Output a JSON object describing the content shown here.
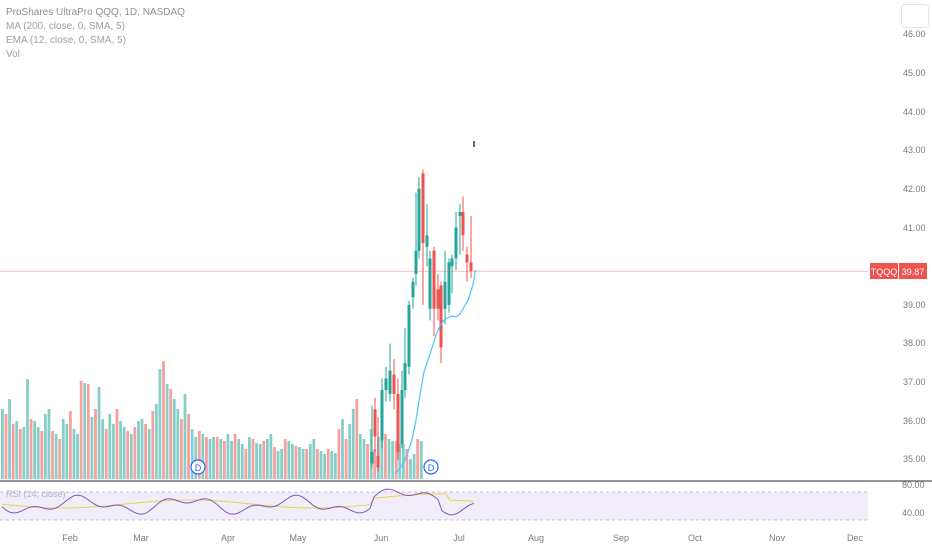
{
  "legend": {
    "title": "ProShares UltraPro QQQ, 1D, NASDAQ",
    "ma": "MA (200, close, 0, SMA, 5)",
    "ema": "EMA (12, close, 0, SMA, 5)",
    "vol": "Vol"
  },
  "price_axis": {
    "ticks": [
      "46.00",
      "45.00",
      "44.00",
      "43.00",
      "42.00",
      "41.00",
      "39.00",
      "38.00",
      "37.00",
      "36.00",
      "35.00"
    ]
  },
  "current_price": {
    "symbol": "TQQQ",
    "value": "39.87"
  },
  "dividend_marker": "D",
  "rsi": {
    "label": "RSI (14, close)",
    "ticks": [
      "80.00",
      "40.00"
    ]
  },
  "time_axis": {
    "months": [
      "Feb",
      "Mar",
      "Apr",
      "May",
      "Jun",
      "Jul",
      "Aug",
      "Sep",
      "Oct",
      "Nov",
      "Dec"
    ]
  },
  "colors": {
    "up": "#26a69a",
    "down": "#ef5350",
    "ema": "#4fc3f7",
    "rsi_line": "#7e57c2",
    "rsi_ma": "#e8d44d",
    "rsi_band": "#ede7f6"
  },
  "chart_data": {
    "type": "candlestick",
    "ylim": [
      34.6,
      46.5
    ],
    "candles": [
      {
        "x": 372,
        "o": 34.9,
        "c": 35.2,
        "h": 36.4,
        "l": 34.8
      },
      {
        "x": 375,
        "o": 36.3,
        "c": 35.6,
        "h": 36.6,
        "l": 35.2
      },
      {
        "x": 378,
        "o": 35.1,
        "c": 34.8,
        "h": 36.1,
        "l": 34.7
      },
      {
        "x": 382,
        "o": 35.5,
        "c": 36.8,
        "h": 37.1,
        "l": 35.3
      },
      {
        "x": 386,
        "o": 36.8,
        "c": 37.1,
        "h": 37.4,
        "l": 36.5
      },
      {
        "x": 390,
        "o": 36.7,
        "c": 37.3,
        "h": 38.0,
        "l": 36.5
      },
      {
        "x": 394,
        "o": 37.2,
        "c": 36.7,
        "h": 37.6,
        "l": 36.3
      },
      {
        "x": 398,
        "o": 36.7,
        "c": 35.2,
        "h": 37.1,
        "l": 35.0
      },
      {
        "x": 402,
        "o": 35.4,
        "c": 36.8,
        "h": 37.3,
        "l": 35.3
      },
      {
        "x": 405,
        "o": 36.8,
        "c": 37.5,
        "h": 38.4,
        "l": 36.6
      },
      {
        "x": 409,
        "o": 37.4,
        "c": 39.0,
        "h": 39.1,
        "l": 37.2
      },
      {
        "x": 413,
        "o": 39.2,
        "c": 39.6,
        "h": 39.7,
        "l": 38.9
      },
      {
        "x": 416,
        "o": 39.8,
        "c": 40.4,
        "h": 41.9,
        "l": 39.5
      },
      {
        "x": 419,
        "o": 40.4,
        "c": 42.0,
        "h": 42.3,
        "l": 40.2
      },
      {
        "x": 423,
        "o": 42.4,
        "c": 40.6,
        "h": 42.5,
        "l": 39.0
      },
      {
        "x": 427,
        "o": 40.5,
        "c": 40.8,
        "h": 41.6,
        "l": 40.0
      },
      {
        "x": 430,
        "o": 38.9,
        "c": 40.2,
        "h": 40.4,
        "l": 38.6
      },
      {
        "x": 434,
        "o": 40.4,
        "c": 38.9,
        "h": 40.5,
        "l": 38.2
      },
      {
        "x": 438,
        "o": 39.4,
        "c": 38.9,
        "h": 39.8,
        "l": 38.6
      },
      {
        "x": 441,
        "o": 39.5,
        "c": 37.9,
        "h": 39.6,
        "l": 37.5
      },
      {
        "x": 445,
        "o": 38.9,
        "c": 39.6,
        "h": 40.4,
        "l": 38.5
      },
      {
        "x": 449,
        "o": 39.0,
        "c": 40.1,
        "h": 40.2,
        "l": 38.8
      },
      {
        "x": 452,
        "o": 40.0,
        "c": 40.2,
        "h": 40.3,
        "l": 39.3
      },
      {
        "x": 456,
        "o": 40.2,
        "c": 41.0,
        "h": 41.4,
        "l": 39.9
      },
      {
        "x": 460,
        "o": 41.3,
        "c": 41.4,
        "h": 41.6,
        "l": 40.3
      },
      {
        "x": 463,
        "o": 41.4,
        "c": 40.8,
        "h": 41.8,
        "l": 40.4
      },
      {
        "x": 467,
        "o": 40.3,
        "c": 40.1,
        "h": 40.5,
        "l": 39.6
      },
      {
        "x": 471,
        "o": 40.1,
        "c": 39.87,
        "h": 41.3,
        "l": 39.7
      }
    ],
    "ema_y": [
      473,
      468,
      462,
      452,
      440,
      420,
      395,
      372,
      360,
      348,
      335,
      326,
      320,
      318,
      316,
      317,
      314,
      307,
      300,
      294,
      288,
      280,
      272,
      270
    ],
    "ema_x": [
      396,
      400,
      404,
      408,
      412,
      416,
      420,
      424,
      428,
      432,
      436,
      440,
      444,
      448,
      452,
      456,
      460,
      464,
      468,
      470,
      472,
      474,
      475,
      476
    ]
  }
}
